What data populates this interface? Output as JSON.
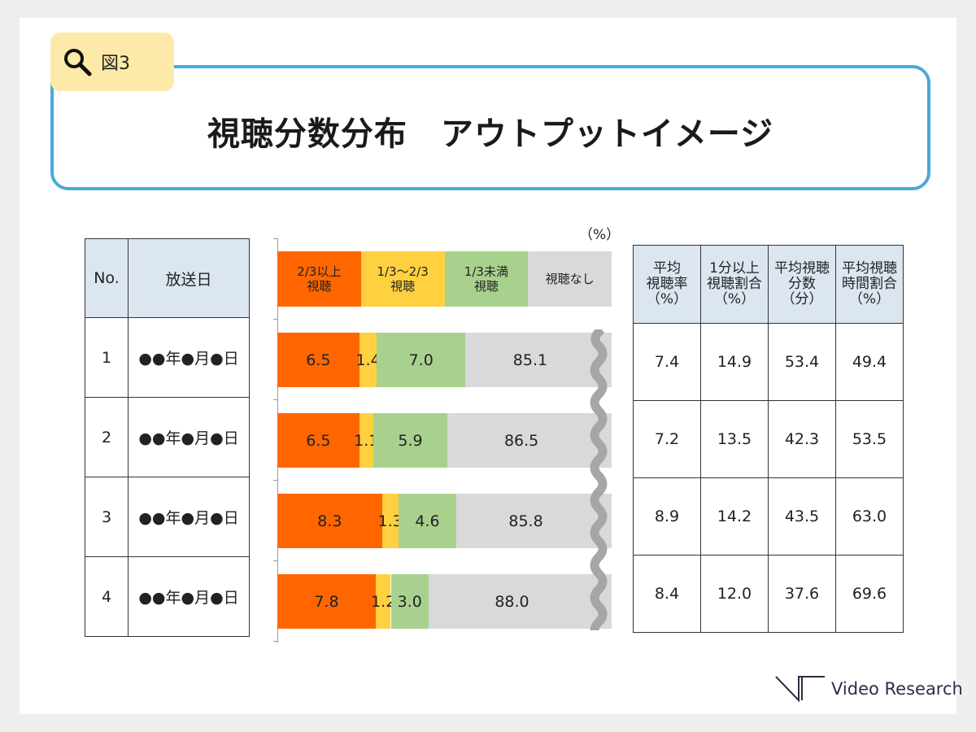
{
  "tag": {
    "label": "図3",
    "icon": "search-icon"
  },
  "title": "視聴分数分布　アウトプットイメージ",
  "left_table": {
    "headers": [
      "No.",
      "放送日"
    ],
    "rows": [
      [
        "1",
        "●●年●月●日"
      ],
      [
        "2",
        "●●年●月●日"
      ],
      [
        "3",
        "●●年●月●日"
      ],
      [
        "4",
        "●●年●月●日"
      ]
    ]
  },
  "chart_data": {
    "type": "bar",
    "stacked": true,
    "horizontal": true,
    "unit": "（%）",
    "categories": [
      "1",
      "2",
      "3",
      "4"
    ],
    "series": [
      {
        "name": "2/3以上\n視聴",
        "label_lines": [
          "2/3以上",
          "視聴"
        ],
        "color": "#ff6600",
        "values": [
          6.5,
          6.5,
          8.3,
          7.8
        ]
      },
      {
        "name": "1/3～2/3\n視聴",
        "label_lines": [
          "1/3～2/3",
          "視聴"
        ],
        "color": "#ffd040",
        "values": [
          1.4,
          1.1,
          1.3,
          1.2
        ]
      },
      {
        "name": "1/3未満\n視聴",
        "label_lines": [
          "1/3未満",
          "視聴"
        ],
        "color": "#a9d18e",
        "values": [
          7.0,
          5.9,
          4.6,
          3.0
        ]
      },
      {
        "name": "視聴なし",
        "label_lines": [
          "視聴なし"
        ],
        "color": "#d9d9d9",
        "values": [
          85.1,
          86.5,
          85.8,
          88.0
        ]
      }
    ],
    "axis_break": true
  },
  "right_table": {
    "headers": [
      "平均\n視聴率\n（%）",
      "1分以上\n視聴割合\n（%）",
      "平均視聴\n分数\n（分）",
      "平均視聴\n時間割合\n（%）"
    ],
    "rows": [
      [
        "7.4",
        "14.9",
        "53.4",
        "49.4"
      ],
      [
        "7.2",
        "13.5",
        "42.3",
        "53.5"
      ],
      [
        "8.9",
        "14.2",
        "43.5",
        "63.0"
      ],
      [
        "8.4",
        "12.0",
        "37.6",
        "69.6"
      ]
    ]
  },
  "logo": "Video Research"
}
